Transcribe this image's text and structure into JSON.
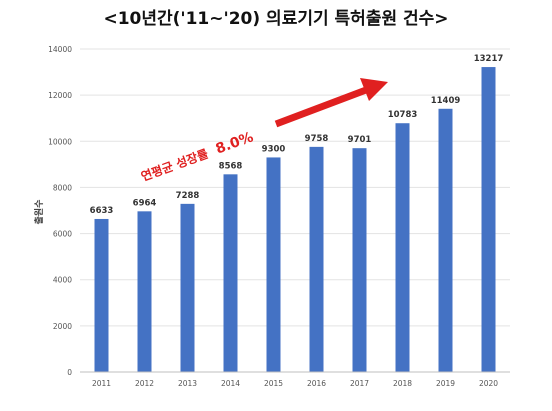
{
  "chart_data": {
    "type": "bar",
    "title": "<10년간('11~'20) 의료기기 특허출원 건수>",
    "ylabel": "출원수",
    "xlabel": "",
    "categories": [
      "2011",
      "2012",
      "2013",
      "2014",
      "2015",
      "2016",
      "2017",
      "2018",
      "2019",
      "2020"
    ],
    "values": [
      6633,
      6964,
      7288,
      8568,
      9300,
      9758,
      9701,
      10783,
      11409,
      13217
    ],
    "ylim": [
      0,
      14000
    ],
    "yticks": [
      0,
      2000,
      4000,
      6000,
      8000,
      10000,
      12000,
      14000
    ],
    "grid": true,
    "bar_color": "#4472c4",
    "annotation": {
      "text": "연평균 성장률",
      "value": "8.0%",
      "color": "#e02020"
    }
  }
}
